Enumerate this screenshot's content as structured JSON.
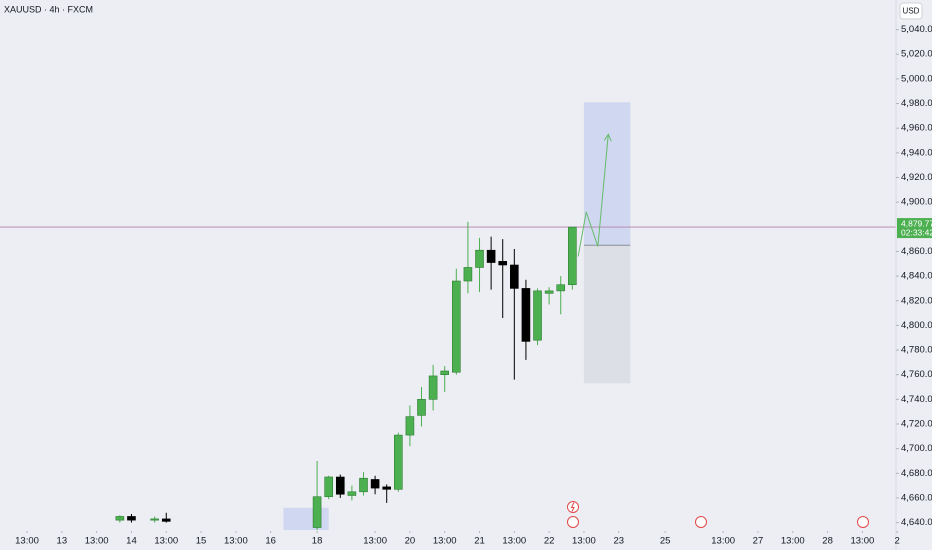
{
  "chart_data": {
    "type": "candlestick",
    "title": "XAUUSD · 4h · FXCM",
    "currency": "USD",
    "up_color": "#4caf50",
    "down_color": "#000000",
    "xlim": [
      -2.33,
      78
    ],
    "ylim": [
      4634,
      5064
    ],
    "xticks": [
      {
        "value": 0,
        "label": "13:00"
      },
      {
        "value": 3,
        "label": "13"
      },
      {
        "value": 6,
        "label": "13:00"
      },
      {
        "value": 9,
        "label": "14"
      },
      {
        "value": 12,
        "label": "13:00"
      },
      {
        "value": 15,
        "label": "15"
      },
      {
        "value": 18,
        "label": "13:00"
      },
      {
        "value": 21,
        "label": "16"
      },
      {
        "value": 25,
        "label": "18"
      },
      {
        "value": 30,
        "label": "13:00"
      },
      {
        "value": 33,
        "label": "20"
      },
      {
        "value": 36,
        "label": "13:00"
      },
      {
        "value": 39,
        "label": "21"
      },
      {
        "value": 42,
        "label": "13:00"
      },
      {
        "value": 45,
        "label": "22"
      },
      {
        "value": 48,
        "label": "13:00"
      },
      {
        "value": 51,
        "label": "23"
      },
      {
        "value": 55,
        "label": "25"
      },
      {
        "value": 60,
        "label": "13:00"
      },
      {
        "value": 63,
        "label": "27"
      },
      {
        "value": 66,
        "label": "13:00"
      },
      {
        "value": 69,
        "label": "28"
      },
      {
        "value": 72,
        "label": "13:00"
      },
      {
        "value": 75,
        "label": "2"
      }
    ],
    "yticks": [
      {
        "value": 4640,
        "label": "4,640.00"
      },
      {
        "value": 4660,
        "label": "4,660.00"
      },
      {
        "value": 4680,
        "label": "4,680.00"
      },
      {
        "value": 4700,
        "label": "4,700.00"
      },
      {
        "value": 4720,
        "label": "4,720.00"
      },
      {
        "value": 4740,
        "label": "4,740.00"
      },
      {
        "value": 4760,
        "label": "4,760.00"
      },
      {
        "value": 4780,
        "label": "4,780.00"
      },
      {
        "value": 4800,
        "label": "4,800.00"
      },
      {
        "value": 4820,
        "label": "4,820.00"
      },
      {
        "value": 4840,
        "label": "4,840.00"
      },
      {
        "value": 4860,
        "label": "4,860.00"
      },
      {
        "value": 4900,
        "label": "4,900.00"
      },
      {
        "value": 4920,
        "label": "4,920.00"
      },
      {
        "value": 4940,
        "label": "4,940.00"
      },
      {
        "value": 4960,
        "label": "4,960.00"
      },
      {
        "value": 4980,
        "label": "4,980.00"
      },
      {
        "value": 5000,
        "label": "5,000.00"
      },
      {
        "value": 5020,
        "label": "5,020.00"
      },
      {
        "value": 5040,
        "label": "5,040.00"
      }
    ],
    "x": [
      8,
      9,
      11,
      12,
      25,
      26,
      27,
      28,
      29,
      30,
      31,
      32,
      33,
      34,
      35,
      36,
      37,
      38,
      39,
      40,
      41,
      42,
      43,
      44,
      45,
      46,
      47
    ],
    "open": [
      4642,
      4645,
      4642,
      4643,
      4636,
      4661,
      4677,
      4662,
      4665,
      4675,
      4669,
      4667,
      4711,
      4727,
      4740,
      4760,
      4762,
      4836,
      4847,
      4861,
      4852,
      4849,
      4830,
      4788,
      4826,
      4828,
      4833
    ],
    "high": [
      4646,
      4647,
      4645,
      4648,
      4690,
      4678,
      4679,
      4670,
      4681,
      4678,
      4671,
      4713,
      4735,
      4750,
      4768,
      4767,
      4846,
      4884,
      4871,
      4872,
      4870,
      4862,
      4837,
      4830,
      4831,
      4840,
      4880
    ],
    "low": [
      4640,
      4640,
      4640,
      4640,
      4634,
      4659,
      4660,
      4658,
      4662,
      4663,
      4656,
      4665,
      4702,
      4718,
      4731,
      4746,
      4760,
      4826,
      4827,
      4829,
      4806,
      4756,
      4772,
      4784,
      4817,
      4809,
      4829
    ],
    "close": [
      4645,
      4642,
      4643,
      4641,
      4661,
      4677,
      4663,
      4665,
      4676,
      4668,
      4667,
      4711,
      4726,
      4740,
      4759,
      4763,
      4836,
      4847,
      4861,
      4851,
      4849,
      4830,
      4787,
      4828,
      4828,
      4833,
      4879.77
    ],
    "last_price": {
      "value": 4879.77,
      "label": "4,879.77"
    },
    "countdown": "02:33:42",
    "position": {
      "x": [
        48,
        52
      ],
      "entry": 4865,
      "target": 4981,
      "stop": 4753
    },
    "projection": {
      "x": [
        47.5,
        48.2,
        49.2,
        50.1
      ],
      "y": [
        4856,
        4892,
        4864,
        4955
      ]
    },
    "zone": {
      "x": [
        22.1,
        26
      ],
      "y": [
        4652,
        4634
      ]
    }
  }
}
